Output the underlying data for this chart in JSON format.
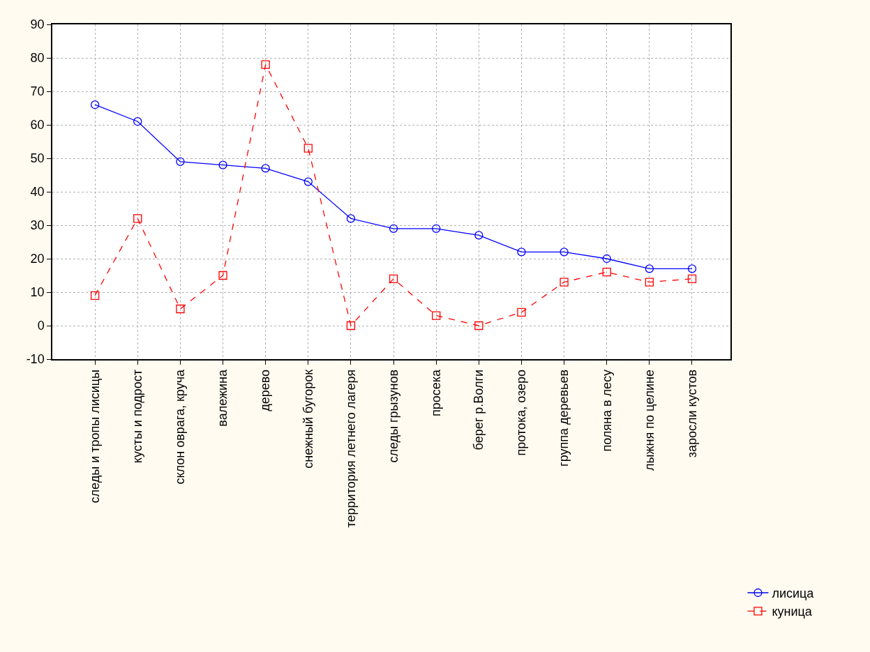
{
  "chart_data": {
    "type": "line",
    "categories": [
      "следы и тропы лисицы",
      "кусты и подрост",
      "склон оврага, круча",
      "валежина",
      "дерево",
      "снежный бугорок",
      "территория летнего лагеря",
      "следы грызунов",
      "просека",
      "берег р.Волги",
      "протока, озеро",
      "группа деревьев",
      "поляна в лесу",
      "лыжня по целине",
      "заросли кустов"
    ],
    "series": [
      {
        "name": "лисица",
        "color": "#0000ff",
        "marker": "circle",
        "line_style": "solid",
        "values": [
          66,
          61,
          49,
          48,
          47,
          43,
          32,
          29,
          29,
          27,
          22,
          22,
          20,
          17,
          17
        ]
      },
      {
        "name": "куница",
        "color": "#ff0000",
        "marker": "square",
        "line_style": "dashed",
        "values": [
          9,
          32,
          5,
          15,
          78,
          53,
          0,
          14,
          3,
          0,
          4,
          13,
          16,
          13,
          14
        ]
      }
    ],
    "ylim": [
      -10,
      90
    ],
    "yticks": [
      -10,
      0,
      10,
      20,
      30,
      40,
      50,
      60,
      70,
      80,
      90
    ],
    "grid": true,
    "legend": "bottom right"
  }
}
